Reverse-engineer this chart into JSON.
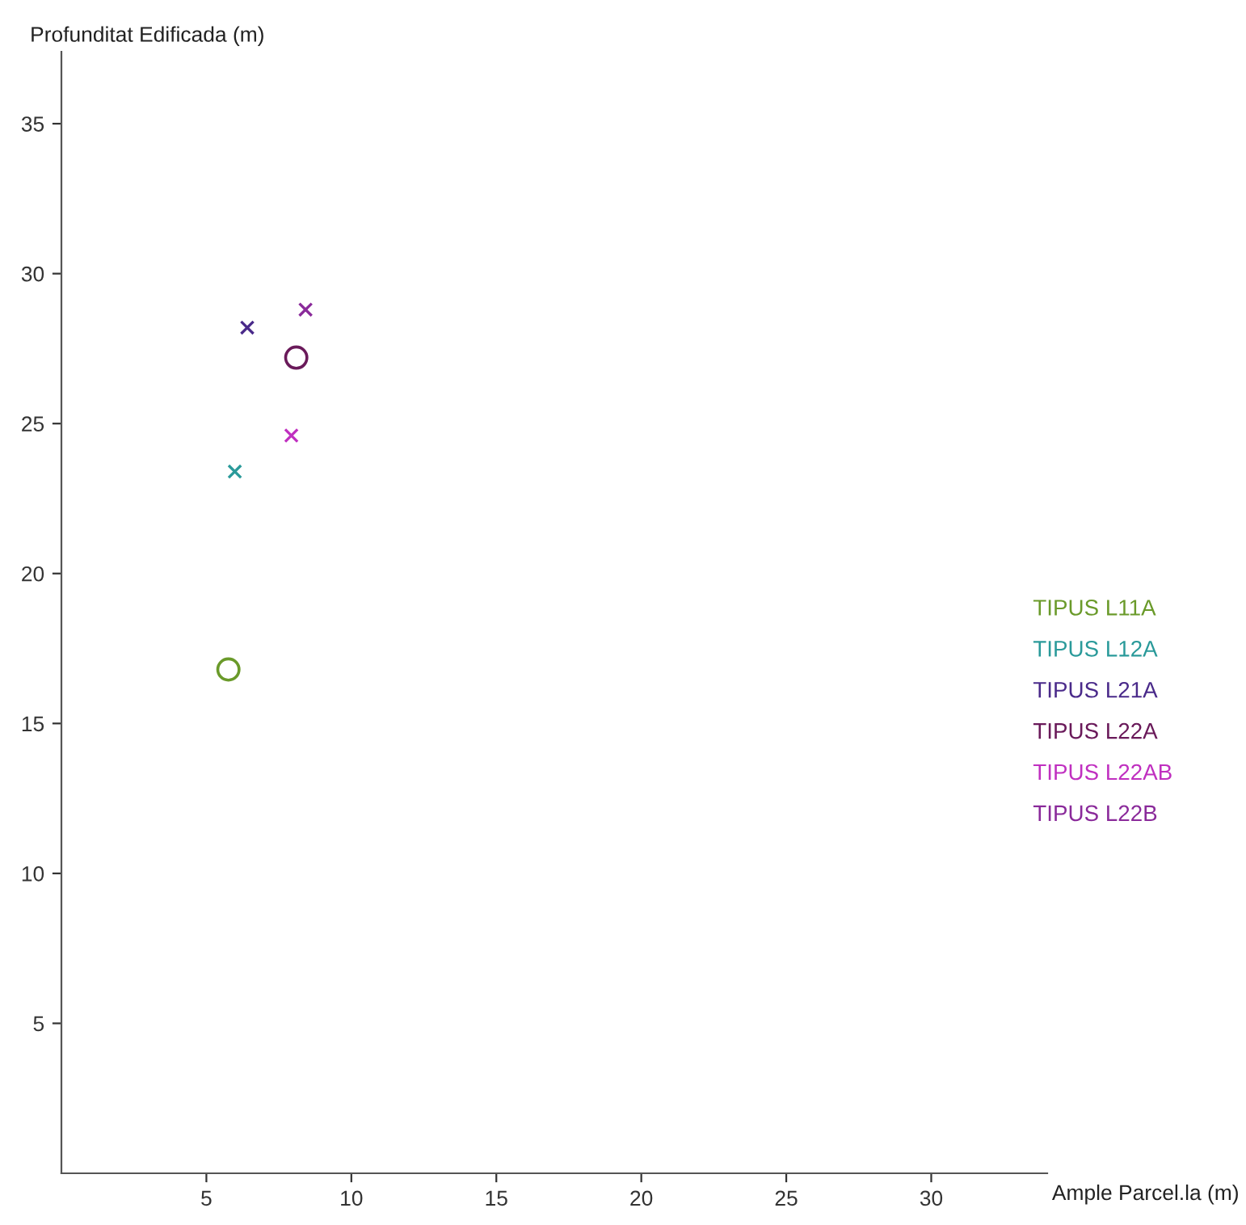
{
  "chart_data": {
    "type": "scatter",
    "xlabel": "Ample Parcel.la (m)",
    "ylabel": "Profunditat Edificada (m)",
    "xlim": [
      0,
      34
    ],
    "ylim": [
      0,
      37.4
    ],
    "xticks": [
      5,
      10,
      15,
      20,
      25,
      30
    ],
    "yticks": [
      5,
      10,
      15,
      20,
      25,
      30,
      35
    ],
    "grid": false,
    "legend": "right",
    "series": [
      {
        "name": "TIPUS L11A",
        "color": "#6a9a2a",
        "marker": "circle",
        "x": [
          5.76
        ],
        "values": [
          16.8
        ]
      },
      {
        "name": "TIPUS L12A",
        "color": "#2a9a9a",
        "marker": "cross",
        "x": [
          5.98
        ],
        "values": [
          23.4
        ]
      },
      {
        "name": "TIPUS L21A",
        "color": "#4a2a8a",
        "marker": "cross",
        "x": [
          6.41
        ],
        "values": [
          28.2
        ]
      },
      {
        "name": "TIPUS L22A",
        "color": "#6a1a5a",
        "marker": "circle",
        "x": [
          8.1
        ],
        "values": [
          27.2
        ]
      },
      {
        "name": "TIPUS L22AB",
        "color": "#c030c0",
        "marker": "cross",
        "x": [
          7.93
        ],
        "values": [
          24.6
        ]
      },
      {
        "name": "TIPUS L22B",
        "color": "#8a2a9a",
        "marker": "cross",
        "x": [
          8.42
        ],
        "values": [
          28.8
        ]
      }
    ]
  }
}
